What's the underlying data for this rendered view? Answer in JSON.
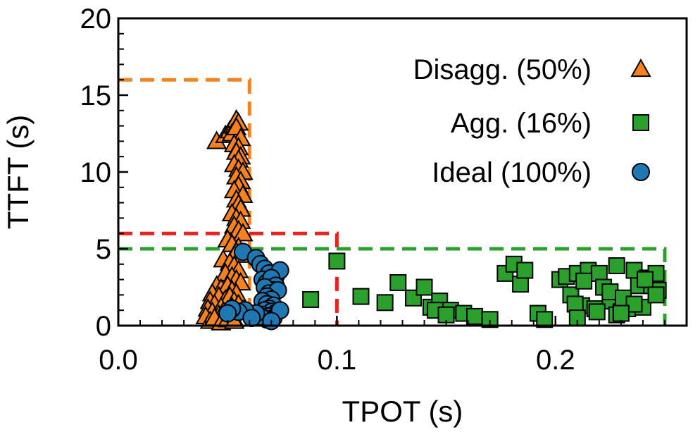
{
  "chart_data": {
    "type": "scatter",
    "title": "",
    "xlabel": "TPOT (s)",
    "ylabel": "TTFT (s)",
    "xlim": [
      0.0,
      0.26
    ],
    "ylim": [
      0,
      20
    ],
    "xticks": [
      0.0,
      0.1,
      0.2
    ],
    "xtick_labels": [
      "0.0",
      "0.1",
      "0.2"
    ],
    "yticks": [
      0,
      5,
      10,
      15,
      20
    ],
    "ytick_labels": [
      "0",
      "5",
      "10",
      "15",
      "20"
    ],
    "legend_position": "top-right",
    "series": [
      {
        "name": "Disagg. (50%)",
        "marker": "triangle",
        "color": "#f5821f",
        "x": [
          0.045,
          0.049,
          0.051,
          0.053,
          0.054,
          0.055,
          0.052,
          0.054,
          0.056,
          0.053,
          0.055,
          0.054,
          0.056,
          0.055,
          0.053,
          0.055,
          0.057,
          0.054,
          0.056,
          0.055,
          0.053,
          0.057,
          0.054,
          0.055,
          0.056,
          0.052,
          0.054,
          0.056,
          0.053,
          0.055,
          0.057,
          0.05,
          0.052,
          0.055,
          0.054,
          0.057,
          0.048,
          0.051,
          0.053,
          0.055,
          0.049,
          0.052,
          0.054,
          0.056,
          0.045,
          0.047,
          0.05,
          0.052,
          0.054,
          0.043,
          0.046,
          0.049,
          0.051,
          0.053,
          0.055,
          0.042,
          0.044,
          0.047,
          0.05,
          0.052,
          0.054,
          0.041,
          0.043,
          0.046,
          0.048,
          0.051,
          0.053,
          0.04,
          0.042,
          0.044,
          0.047,
          0.05,
          0.053
        ],
        "y": [
          12.0,
          12.4,
          12.7,
          13.0,
          13.4,
          13.2,
          12.5,
          12.9,
          12.2,
          11.8,
          11.6,
          11.3,
          11.0,
          10.8,
          10.5,
          10.2,
          10.0,
          9.7,
          9.4,
          9.1,
          8.8,
          8.5,
          8.2,
          7.9,
          7.6,
          7.3,
          7.0,
          6.8,
          6.5,
          6.2,
          6.0,
          5.6,
          5.3,
          5.1,
          4.8,
          4.6,
          4.3,
          4.1,
          3.9,
          3.6,
          3.4,
          3.2,
          3.0,
          2.8,
          2.6,
          2.4,
          2.6,
          2.3,
          2.1,
          2.1,
          1.9,
          1.7,
          1.9,
          1.6,
          1.4,
          1.6,
          1.4,
          1.2,
          1.0,
          1.2,
          0.9,
          1.1,
          0.9,
          0.7,
          0.9,
          0.6,
          0.4,
          0.6,
          0.3,
          0.5,
          0.2,
          0.4,
          0.3
        ]
      },
      {
        "name": "Agg. (16%)",
        "marker": "square",
        "color": "#2ca02c",
        "x": [
          0.1,
          0.088,
          0.111,
          0.122,
          0.128,
          0.135,
          0.14,
          0.143,
          0.147,
          0.152,
          0.158,
          0.163,
          0.17,
          0.177,
          0.181,
          0.184,
          0.186,
          0.192,
          0.195,
          0.202,
          0.205,
          0.207,
          0.21,
          0.212,
          0.215,
          0.218,
          0.22,
          0.222,
          0.225,
          0.228,
          0.23,
          0.233,
          0.236,
          0.238,
          0.24,
          0.242,
          0.244,
          0.246,
          0.247,
          0.228,
          0.225,
          0.231,
          0.219,
          0.213,
          0.209,
          0.236,
          0.241,
          0.246,
          0.23,
          0.21,
          0.145,
          0.15
        ],
        "y": [
          4.2,
          1.7,
          1.9,
          1.5,
          2.8,
          1.8,
          2.5,
          1.2,
          1.6,
          1.0,
          0.8,
          0.6,
          0.4,
          3.4,
          4.0,
          2.7,
          3.6,
          0.8,
          0.4,
          3.0,
          3.2,
          2.0,
          3.4,
          1.3,
          3.6,
          1.1,
          3.4,
          2.5,
          1.6,
          0.7,
          0.9,
          1.1,
          3.6,
          2.6,
          1.2,
          3.1,
          2.6,
          3.4,
          2.3,
          3.9,
          2.2,
          1.8,
          0.9,
          2.9,
          1.4,
          1.4,
          3.0,
          2.0,
          0.8,
          0.5,
          1.0,
          0.7
        ]
      },
      {
        "name": "Ideal (100%)",
        "marker": "circle",
        "color": "#1f77b4",
        "x": [
          0.057,
          0.063,
          0.065,
          0.067,
          0.069,
          0.072,
          0.074,
          0.066,
          0.068,
          0.07,
          0.072,
          0.071,
          0.067,
          0.069,
          0.073,
          0.068,
          0.07,
          0.066,
          0.068,
          0.071,
          0.069,
          0.067,
          0.07,
          0.072,
          0.066,
          0.069,
          0.071,
          0.068,
          0.065,
          0.063,
          0.058,
          0.055,
          0.052,
          0.05,
          0.061,
          0.074,
          0.07
        ],
        "y": [
          4.8,
          4.4,
          4.0,
          3.7,
          3.4,
          3.2,
          3.6,
          3.0,
          2.8,
          3.1,
          2.6,
          2.3,
          2.5,
          2.1,
          2.3,
          1.9,
          1.7,
          1.6,
          1.4,
          1.3,
          1.1,
          1.0,
          0.9,
          0.8,
          0.7,
          0.6,
          0.5,
          0.4,
          0.6,
          0.8,
          1.0,
          0.9,
          1.1,
          0.8,
          0.5,
          1.0,
          0.3
        ]
      }
    ],
    "threshold_boxes": [
      {
        "color": "#f5821f",
        "tpot": 0.06,
        "ttft": 16
      },
      {
        "color": "#e8221c",
        "tpot": 0.1,
        "ttft": 6
      },
      {
        "color": "#2ca02c",
        "tpot": 0.25,
        "ttft": 5
      }
    ]
  }
}
